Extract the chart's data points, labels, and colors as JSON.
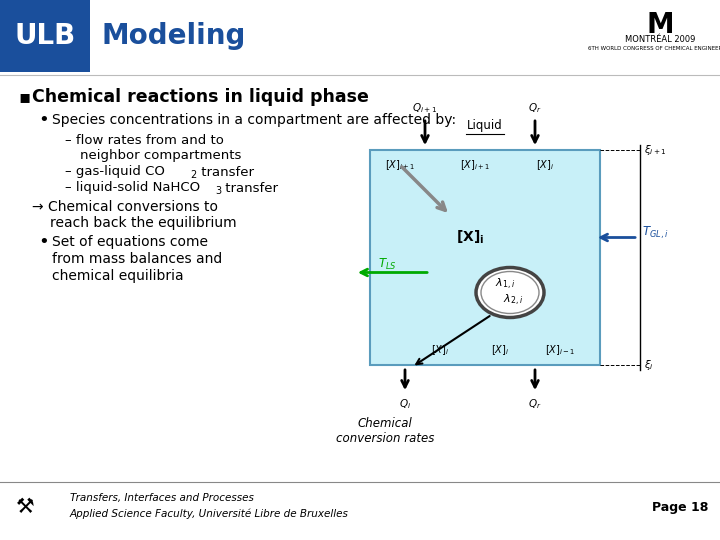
{
  "bg_color": "#ffffff",
  "header_bg": "#1a4f9c",
  "header_text": "ULB",
  "title_text": "Modeling",
  "title_color": "#1a4f9c",
  "section_text": "Chemical reactions in liquid phase",
  "bullet1": "Species concentrations in a compartment are affected by:",
  "footer1": "Transfers, Interfaces and Processes",
  "footer2": "Applied Science Faculty, Université Libre de Bruxelles",
  "page": "Page 18",
  "liquid_box_color": "#c8f0f8",
  "liquid_border": "#5a9cbd",
  "liquid_label": "Liquid",
  "tgl_color": "#1a4f9c",
  "tls_color": "#00aa00",
  "arrow_green": "#00aa00",
  "arrow_blue": "#1a4f9c",
  "arrow_black": "#000000"
}
